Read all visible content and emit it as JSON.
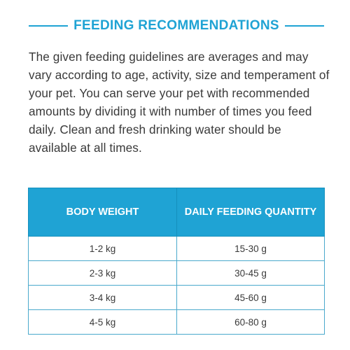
{
  "heading": {
    "title": "FEEDING RECOMMENDATIONS"
  },
  "intro": {
    "text": "The given feeding guidelines are averages and may vary according to age, activity, size and temperament of your pet. You can serve your pet with recommended amounts by dividing it with number of times you feed daily. Clean and fresh drinking water should be available at all times."
  },
  "colors": {
    "accent": "#1fa3d4",
    "header_text": "#ffffff",
    "body_text": "#3a3a3a"
  },
  "table": {
    "headers": [
      "BODY WEIGHT",
      "DAILY FEEDING QUANTITY"
    ],
    "rows": [
      [
        "1-2 kg",
        "15-30 g"
      ],
      [
        "2-3 kg",
        "30-45 g"
      ],
      [
        "3-4 kg",
        "45-60 g"
      ],
      [
        "4-5 kg",
        "60-80 g"
      ]
    ]
  }
}
